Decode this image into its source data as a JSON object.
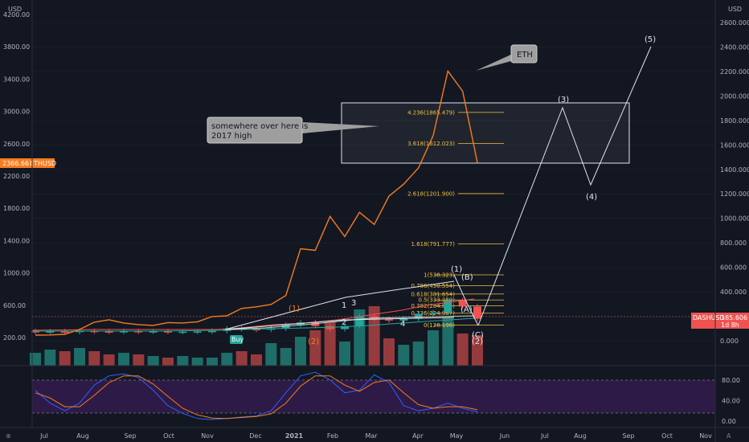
{
  "chart_data": {
    "type": "line",
    "left_axis": {
      "unit": "USD",
      "ticks": [
        "4200.00",
        "3800.00",
        "3400.00",
        "3000.00",
        "2600.00",
        "2200.00",
        "1800.00",
        "1400.00",
        "1000.00",
        "600.00",
        "200.00"
      ],
      "tick_values": [
        4200,
        3800,
        3400,
        3000,
        2600,
        2200,
        1800,
        1400,
        1000,
        600,
        200
      ]
    },
    "right_axis": {
      "unit": "USD",
      "ticks": [
        "2600.000",
        "2400.000",
        "2200.000",
        "2000.000",
        "1800.000",
        "1600.000",
        "1400.000",
        "1200.000",
        "1000.000",
        "800.000",
        "600.000",
        "400.000",
        "200.000",
        "0.000"
      ],
      "tick_values": [
        2600,
        2400,
        2200,
        2000,
        1800,
        1600,
        1400,
        1200,
        1000,
        800,
        600,
        400,
        200,
        0
      ]
    },
    "x_labels": [
      "Jul",
      "Aug",
      "Sep",
      "Oct",
      "Nov",
      "Dec",
      "2021",
      "Feb",
      "Mar",
      "Apr",
      "May",
      "Jun",
      "Jul",
      "Aug",
      "Sep",
      "Oct",
      "Nov"
    ],
    "eth_series": {
      "name": "ETHUSD",
      "last_value": "2366.66",
      "color": "#f57c1f",
      "values": [
        230,
        232,
        240,
        300,
        390,
        420,
        380,
        360,
        350,
        385,
        380,
        395,
        460,
        470,
        560,
        580,
        610,
        720,
        1300,
        1280,
        1700,
        1450,
        1750,
        1600,
        1950,
        2100,
        2300,
        2700,
        3500,
        3250,
        2366
      ]
    },
    "dash_series": {
      "name": "DASHUSD",
      "last_value": "185.606",
      "countdown": "1d 8h",
      "color": "#ef5350",
      "candles": [
        {
          "o": 78,
          "c": 74,
          "up": false
        },
        {
          "o": 74,
          "c": 76,
          "up": true
        },
        {
          "o": 76,
          "c": 72,
          "up": false
        },
        {
          "o": 72,
          "c": 80,
          "up": true
        },
        {
          "o": 80,
          "c": 76,
          "up": false
        },
        {
          "o": 76,
          "c": 74,
          "up": false
        },
        {
          "o": 74,
          "c": 78,
          "up": true
        },
        {
          "o": 78,
          "c": 75,
          "up": false
        },
        {
          "o": 75,
          "c": 77,
          "up": true
        },
        {
          "o": 77,
          "c": 72,
          "up": false
        },
        {
          "o": 72,
          "c": 74,
          "up": true
        },
        {
          "o": 74,
          "c": 76,
          "up": true
        },
        {
          "o": 76,
          "c": 80,
          "up": true
        },
        {
          "o": 80,
          "c": 100,
          "up": true
        },
        {
          "o": 100,
          "c": 95,
          "up": false
        },
        {
          "o": 95,
          "c": 90,
          "up": false
        },
        {
          "o": 90,
          "c": 100,
          "up": true
        },
        {
          "o": 100,
          "c": 130,
          "up": true
        },
        {
          "o": 130,
          "c": 150,
          "up": true
        },
        {
          "o": 150,
          "c": 120,
          "up": false
        },
        {
          "o": 120,
          "c": 95,
          "up": false
        },
        {
          "o": 95,
          "c": 120,
          "up": true
        },
        {
          "o": 120,
          "c": 200,
          "up": true
        },
        {
          "o": 200,
          "c": 175,
          "up": false
        },
        {
          "o": 175,
          "c": 165,
          "up": false
        },
        {
          "o": 165,
          "c": 180,
          "up": true
        },
        {
          "o": 180,
          "c": 220,
          "up": true
        },
        {
          "o": 220,
          "c": 230,
          "up": true
        },
        {
          "o": 230,
          "c": 330,
          "up": true
        },
        {
          "o": 330,
          "c": 280,
          "up": false
        },
        {
          "o": 280,
          "c": 180,
          "up": false
        }
      ],
      "volume": [
        16,
        20,
        18,
        22,
        18,
        14,
        16,
        14,
        12,
        10,
        12,
        10,
        10,
        16,
        18,
        14,
        28,
        22,
        36,
        44,
        54,
        30,
        70,
        74,
        34,
        26,
        30,
        44,
        60,
        40,
        38
      ],
      "volume_up": [
        true,
        true,
        false,
        true,
        false,
        false,
        true,
        false,
        true,
        false,
        true,
        true,
        true,
        true,
        false,
        false,
        true,
        true,
        true,
        false,
        false,
        true,
        true,
        false,
        false,
        true,
        true,
        true,
        true,
        false,
        false
      ]
    },
    "fib_levels": [
      {
        "label": "4.236(1865.479)",
        "value": 1865.479
      },
      {
        "label": "3.618(1612.023)",
        "value": 1612.023
      },
      {
        "label": "2.618(1201.900)",
        "value": 1201.9
      },
      {
        "label": "1.618(791.777)",
        "value": 791.777
      },
      {
        "label": "1(538.323)",
        "value": 538.323
      },
      {
        "label": "0.786(450.554)",
        "value": 450.554
      },
      {
        "label": "0.618(381.654)",
        "value": 381.654
      },
      {
        "label": "0.5(333.259)",
        "value": 333.259
      },
      {
        "label": "0.382(284.865)",
        "value": 284.865
      },
      {
        "label": "0.236(224.987)",
        "value": 224.987
      },
      {
        "label": "0(128.198)",
        "value": 128.198
      }
    ],
    "wave_labels": [
      "(1)",
      "(2)",
      "(3)",
      "(4)",
      "(5)",
      "(A)",
      "(B)",
      "(C)"
    ],
    "minor_labels": [
      "1",
      "2",
      "3",
      "4"
    ],
    "stoch_rsi": {
      "ticks": [
        "80.00",
        "40.00",
        "0.00"
      ],
      "tick_values": [
        80,
        40,
        0
      ],
      "k": [
        60,
        35,
        20,
        35,
        70,
        88,
        92,
        85,
        60,
        30,
        15,
        5,
        3,
        5,
        8,
        10,
        20,
        55,
        88,
        95,
        80,
        55,
        60,
        90,
        75,
        30,
        20,
        25,
        35,
        25,
        18
      ],
      "d": [
        55,
        45,
        28,
        28,
        50,
        75,
        88,
        88,
        72,
        48,
        25,
        12,
        6,
        5,
        7,
        9,
        14,
        35,
        68,
        88,
        88,
        70,
        58,
        75,
        80,
        55,
        32,
        25,
        28,
        28,
        22
      ]
    }
  },
  "annotations": {
    "eth_callout": "ETH",
    "high_callout_line1": "somewhere over here is",
    "high_callout_line2": "2017 high",
    "buy_label": "Buy"
  },
  "colors": {
    "background": "#131722",
    "eth": "#f57c1f",
    "up": "#26a69a",
    "down": "#ef5350",
    "fib": "#f0c040",
    "rsi_k": "#2962ff",
    "rsi_d": "#f57c1f",
    "rsi_band": "#2e1a47"
  }
}
